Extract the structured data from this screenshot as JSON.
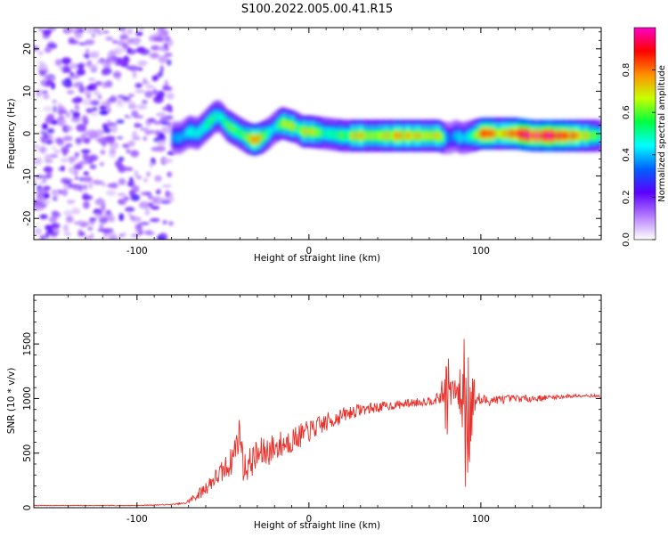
{
  "title": "S100.2022.005.00.41.R15",
  "chart_data": [
    {
      "type": "heatmap",
      "xlabel": "Height of straight line (km)",
      "ylabel": "Frequency (Hz)",
      "xlim": [
        -160,
        170
      ],
      "ylim": [
        -25,
        25
      ],
      "xticks": [
        {
          "v": -100,
          "label": "-100"
        },
        {
          "v": 0,
          "label": "0"
        },
        {
          "v": 100,
          "label": "100"
        }
      ],
      "yticks": [
        {
          "v": 20,
          "label": "20"
        },
        {
          "v": 10,
          "label": "10"
        },
        {
          "v": 0,
          "label": "0"
        },
        {
          "v": -10,
          "label": "-10"
        },
        {
          "v": -20,
          "label": "-20"
        }
      ],
      "noise_region_x": [
        -160,
        -80
      ],
      "ridge": {
        "x": [
          -80,
          -75,
          -70,
          -65,
          -60,
          -55,
          -52,
          -48,
          -44,
          -40,
          -36,
          -32,
          -28,
          -24,
          -20,
          -16,
          -12,
          -8,
          -4,
          0,
          10,
          20,
          30,
          40,
          50,
          60,
          70,
          75,
          78,
          80,
          82,
          85,
          88,
          90,
          95,
          100,
          110,
          120,
          130,
          140,
          150,
          160,
          170
        ],
        "y": [
          -1,
          -1,
          0.5,
          0,
          2,
          4,
          4,
          2,
          1,
          0,
          -1,
          -1.5,
          -1,
          0,
          1.5,
          2.5,
          2,
          1.5,
          0.5,
          0.5,
          0,
          -0.5,
          -0.5,
          -0.5,
          -0.5,
          -0.5,
          -0.5,
          -0.5,
          -1,
          -1,
          -1,
          -0.5,
          -1,
          -1,
          -0.5,
          0,
          0,
          0,
          -0.5,
          -0.5,
          -0.5,
          -0.5,
          -0.5
        ],
        "amp": [
          0.35,
          0.4,
          0.45,
          0.5,
          0.5,
          0.55,
          0.5,
          0.6,
          0.6,
          0.55,
          0.65,
          0.85,
          0.7,
          0.5,
          0.45,
          0.65,
          0.7,
          0.6,
          0.65,
          0.7,
          0.5,
          0.6,
          0.7,
          0.65,
          0.75,
          0.7,
          0.65,
          0.75,
          0.55,
          0.35,
          0.35,
          0.4,
          0.5,
          0.4,
          0.55,
          0.85,
          0.75,
          0.9,
          0.9,
          0.95,
          0.85,
          0.7,
          0.55
        ]
      },
      "colorbar": {
        "label": "Normalized spectral amplitude",
        "range": [
          0,
          1
        ],
        "ticks": [
          {
            "v": 0.0,
            "label": "0.0"
          },
          {
            "v": 0.2,
            "label": "0.2"
          },
          {
            "v": 0.4,
            "label": "0.4"
          },
          {
            "v": 0.6,
            "label": "0.6"
          },
          {
            "v": 0.8,
            "label": "0.8"
          }
        ],
        "colors": [
          "#ffffff",
          "#b57bff",
          "#5a00ff",
          "#0060ff",
          "#00ffff",
          "#00ff40",
          "#c8ff00",
          "#ff9000",
          "#ff0000",
          "#ff00c8"
        ]
      }
    },
    {
      "type": "line",
      "xlabel": "Height of straight line (km)",
      "ylabel": "SNR (10 * v/v)",
      "xlim": [
        -160,
        170
      ],
      "ylim": [
        0,
        1950
      ],
      "xticks": [
        {
          "v": -100,
          "label": "-100"
        },
        {
          "v": 0,
          "label": "0"
        },
        {
          "v": 100,
          "label": "100"
        }
      ],
      "yticks": [
        {
          "v": 0,
          "label": "0"
        },
        {
          "v": 500,
          "label": "500"
        },
        {
          "v": 1000,
          "label": "1000"
        },
        {
          "v": 1500,
          "label": "1500"
        }
      ],
      "color": "#e8302a",
      "series": [
        {
          "x": [
            -160,
            -140,
            -120,
            -100,
            -90,
            -80,
            -72,
            -68,
            -62,
            -56,
            -50,
            -45,
            -42,
            -40,
            -38,
            -30,
            -20,
            -10,
            0,
            10,
            20,
            30,
            40,
            50,
            60,
            70,
            75,
            78,
            80,
            83,
            86,
            88,
            90,
            92,
            93,
            95,
            97,
            100,
            110,
            120,
            130,
            140,
            150,
            160,
            170
          ],
          "y": [
            20,
            20,
            20,
            20,
            25,
            30,
            40,
            80,
            150,
            250,
            330,
            430,
            600,
            700,
            350,
            480,
            550,
            620,
            700,
            780,
            850,
            900,
            920,
            940,
            960,
            980,
            1000,
            1050,
            1050,
            1080,
            1060,
            1040,
            1000,
            950,
            960,
            1000,
            1000,
            980,
            990,
            1000,
            1000,
            1010,
            1020,
            1030,
            1020
          ],
          "noise": [
            3,
            3,
            3,
            3,
            4,
            5,
            10,
            30,
            60,
            80,
            110,
            130,
            150,
            160,
            140,
            150,
            140,
            120,
            100,
            90,
            70,
            55,
            50,
            40,
            40,
            40,
            50,
            150,
            450,
            120,
            100,
            250,
            800,
            900,
            700,
            350,
            100,
            60,
            40,
            35,
            30,
            25,
            20,
            15,
            15
          ],
          "seed": 7
        }
      ]
    }
  ]
}
